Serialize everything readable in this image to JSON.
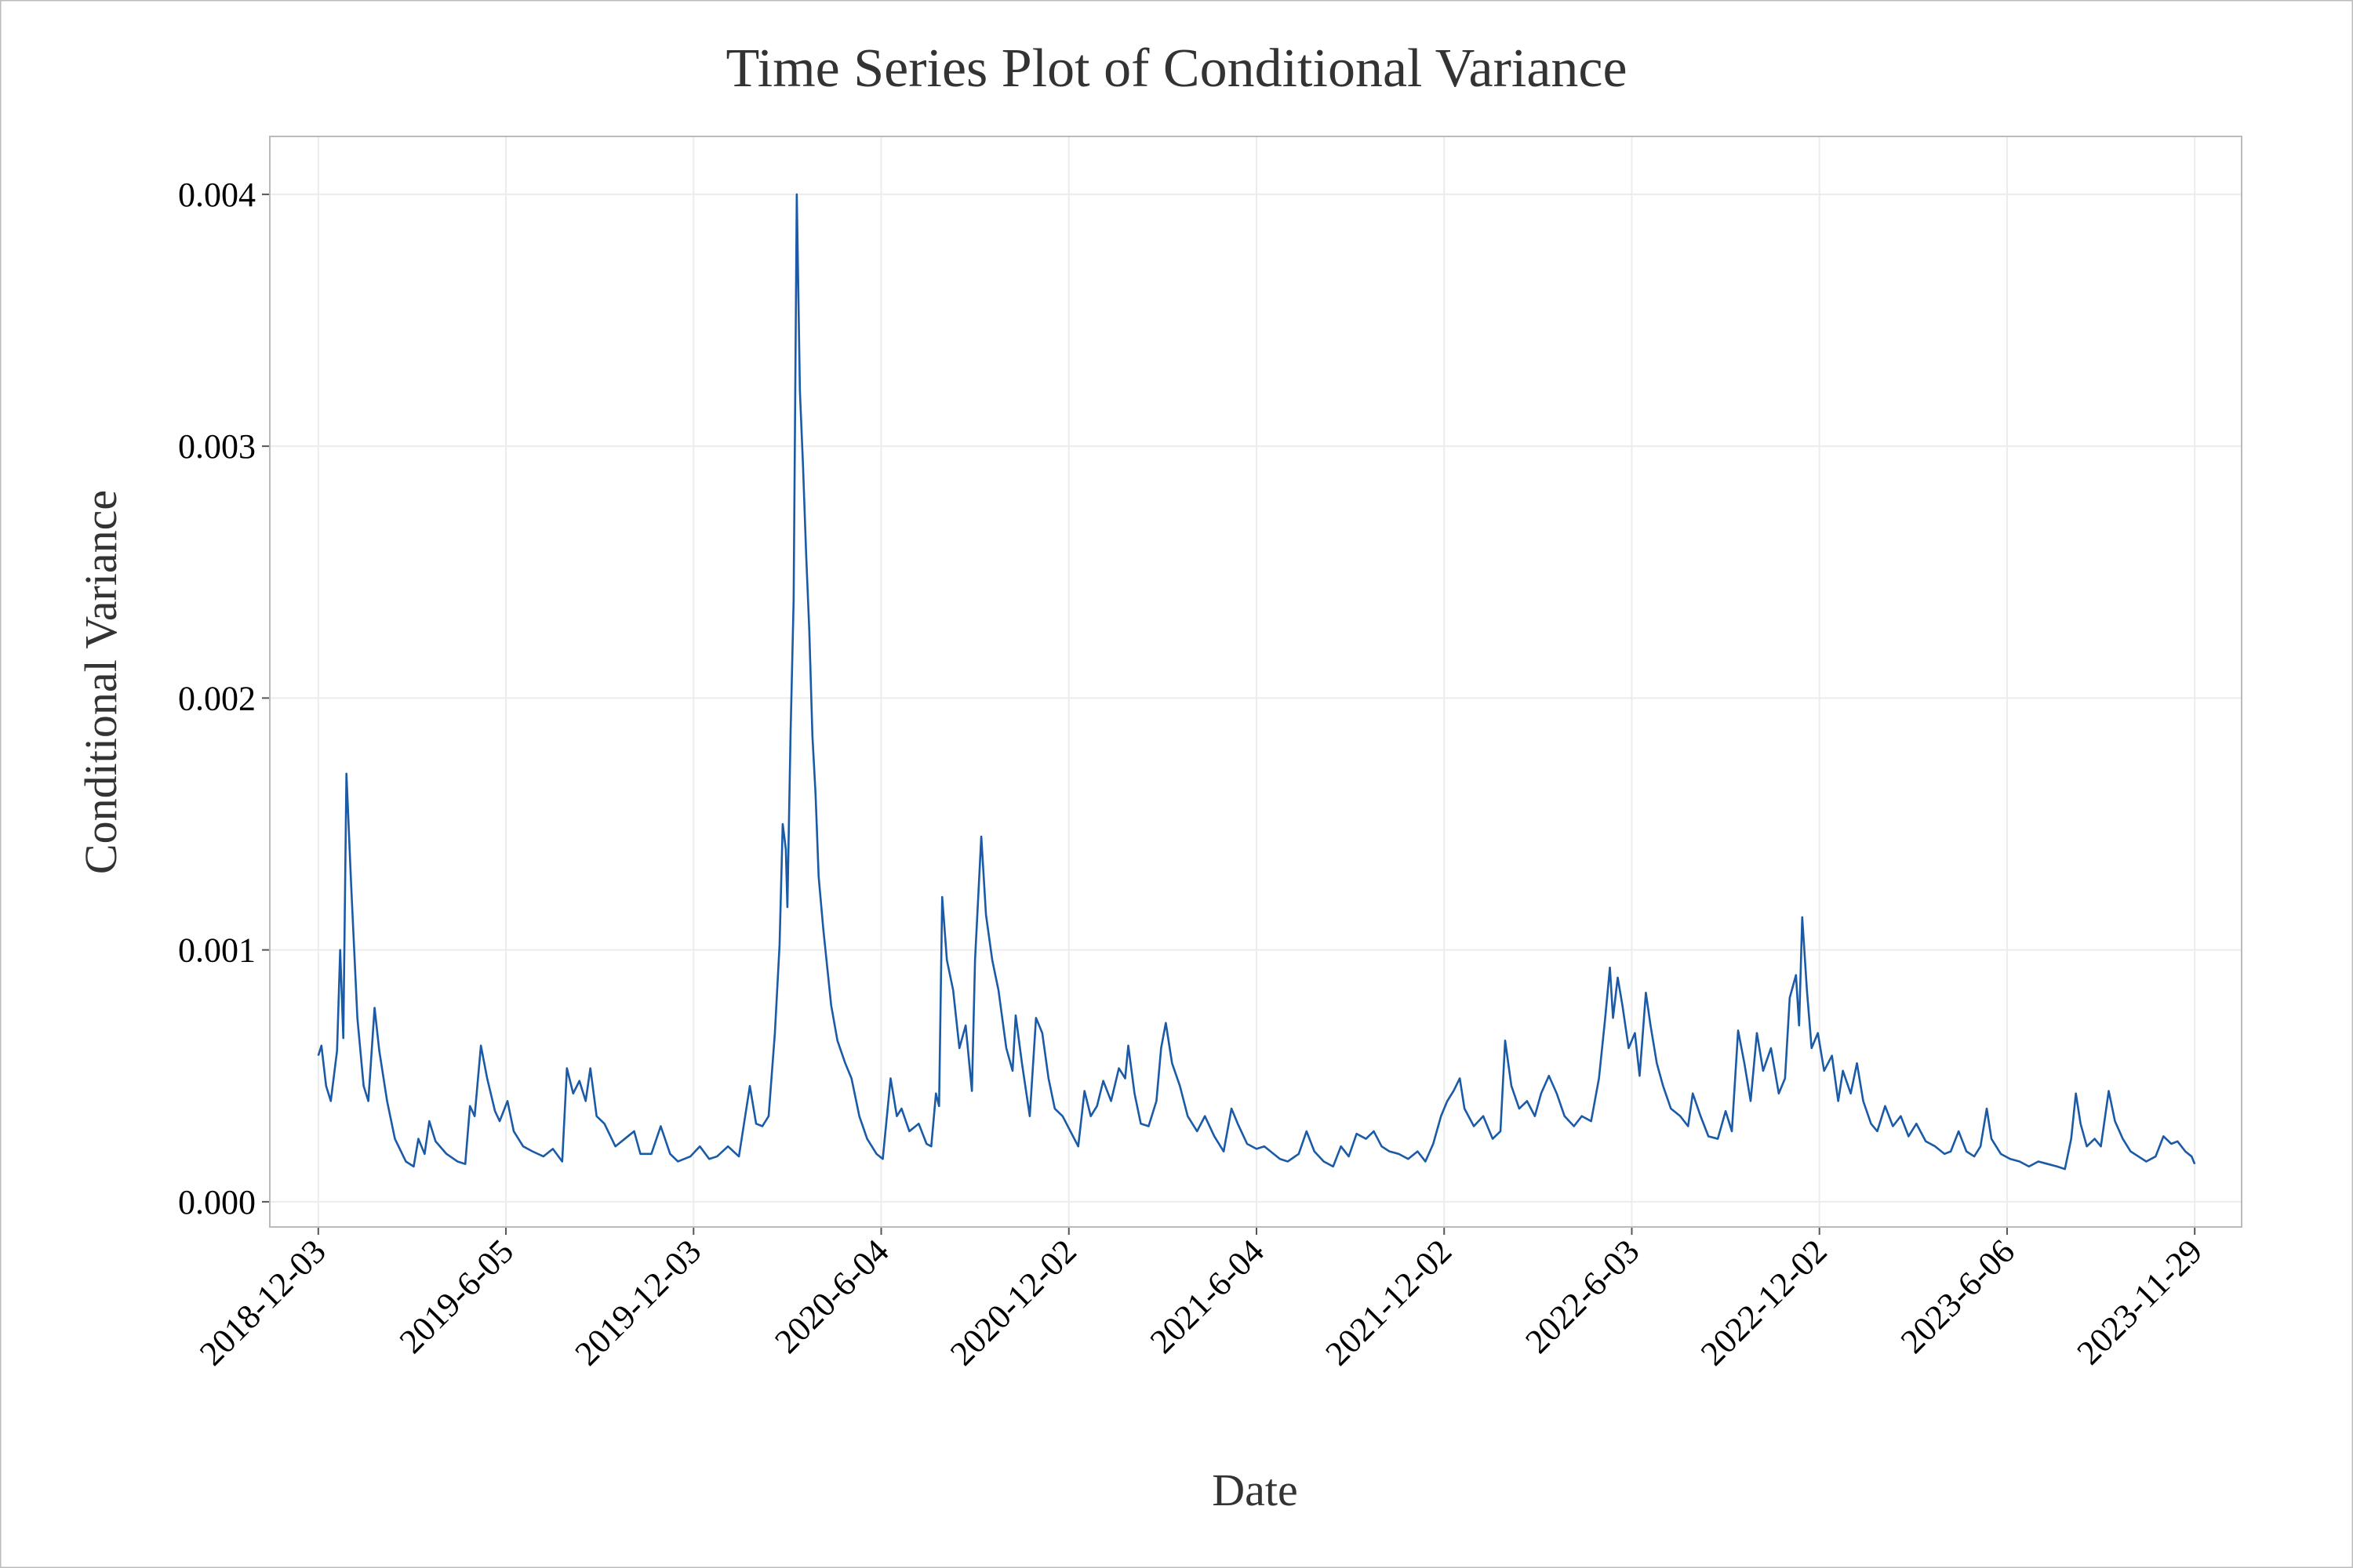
{
  "chart_data": {
    "type": "line",
    "title": "Time Series Plot of Conditional Variance",
    "xlabel": "Date",
    "ylabel": "Conditional Variance",
    "color": "#1a5aa6",
    "grid": true,
    "xlim": [
      -31,
      1230
    ],
    "xticks": [
      {
        "value": 0,
        "label": "2018-12-03"
      },
      {
        "value": 120,
        "label": "2019-6-05"
      },
      {
        "value": 240,
        "label": "2019-12-03"
      },
      {
        "value": 360,
        "label": "2020-6-04"
      },
      {
        "value": 480,
        "label": "2020-12-02"
      },
      {
        "value": 600,
        "label": "2021-6-04"
      },
      {
        "value": 720,
        "label": "2021-12-02"
      },
      {
        "value": 840,
        "label": "2022-6-03"
      },
      {
        "value": 960,
        "label": "2022-12-02"
      },
      {
        "value": 1080,
        "label": "2023-6-06"
      },
      {
        "value": 1200,
        "label": "2023-11-29"
      }
    ],
    "ylim": [
      -0.0001,
      0.00423
    ],
    "yticks": [
      {
        "value": 0,
        "label": "0.000"
      },
      0.001,
      0.002,
      0.003,
      0.004
    ],
    "x": [
      0,
      2,
      5,
      8,
      12,
      14,
      16,
      18,
      21,
      25,
      29,
      32,
      36,
      39,
      44,
      49,
      56,
      61,
      64,
      68,
      71,
      75,
      82,
      89,
      94,
      97,
      100,
      104,
      108,
      113,
      116,
      121,
      125,
      131,
      137,
      144,
      150,
      156,
      159,
      163,
      167,
      171,
      174,
      178,
      183,
      190,
      196,
      202,
      206,
      213,
      219,
      225,
      230,
      238,
      244,
      250,
      255,
      262,
      269,
      276,
      280,
      284,
      288,
      292,
      295,
      297,
      299,
      300,
      302,
      304,
      306,
      308,
      310,
      312,
      314,
      316,
      318,
      320,
      323,
      325,
      328,
      332,
      337,
      341,
      346,
      351,
      357,
      361,
      366,
      370,
      373,
      378,
      384,
      389,
      392,
      395,
      397,
      399,
      402,
      406,
      410,
      414,
      418,
      420,
      424,
      427,
      431,
      435,
      440,
      444,
      446,
      450,
      455,
      459,
      463,
      467,
      471,
      476,
      481,
      486,
      490,
      494,
      498,
      502,
      507,
      512,
      516,
      518,
      522,
      526,
      531,
      536,
      539,
      542,
      546,
      551,
      556,
      562,
      567,
      573,
      579,
      584,
      588,
      594,
      600,
      605,
      611,
      615,
      620,
      627,
      632,
      637,
      643,
      649,
      654,
      659,
      664,
      670,
      675,
      680,
      685,
      691,
      697,
      703,
      708,
      713,
      718,
      722,
      726,
      730,
      733,
      739,
      745,
      751,
      756,
      759,
      763,
      768,
      773,
      778,
      782,
      787,
      792,
      797,
      803,
      808,
      814,
      819,
      823,
      826,
      828,
      831,
      834,
      838,
      842,
      845,
      849,
      852,
      856,
      860,
      865,
      871,
      876,
      879,
      884,
      889,
      895,
      900,
      904,
      908,
      912,
      916,
      920,
      924,
      929,
      934,
      938,
      941,
      945,
      947,
      949,
      952,
      955,
      959,
      963,
      968,
      972,
      975,
      980,
      984,
      988,
      993,
      997,
      1002,
      1007,
      1012,
      1017,
      1022,
      1028,
      1034,
      1040,
      1044,
      1049,
      1054,
      1059,
      1063,
      1067,
      1070,
      1076,
      1082,
      1088,
      1094,
      1100,
      1106,
      1112,
      1117,
      1121,
      1124,
      1127,
      1131,
      1136,
      1140,
      1145,
      1149,
      1154,
      1159,
      1164,
      1169,
      1175,
      1180,
      1185,
      1189,
      1194,
      1198,
      1200
    ],
    "values": [
      0.00058,
      0.00062,
      0.00046,
      0.0004,
      0.0006,
      0.001,
      0.00065,
      0.0017,
      0.00126,
      0.00073,
      0.00046,
      0.0004,
      0.00077,
      0.0006,
      0.0004,
      0.00025,
      0.00016,
      0.00014,
      0.00025,
      0.00019,
      0.00032,
      0.00024,
      0.00019,
      0.00016,
      0.00015,
      0.00038,
      0.00034,
      0.00062,
      0.00049,
      0.00036,
      0.00032,
      0.0004,
      0.00028,
      0.00022,
      0.0002,
      0.00018,
      0.00021,
      0.00016,
      0.00053,
      0.00043,
      0.00048,
      0.0004,
      0.00053,
      0.00034,
      0.00031,
      0.00022,
      0.00025,
      0.00028,
      0.00019,
      0.00019,
      0.0003,
      0.00019,
      0.00016,
      0.00018,
      0.00022,
      0.00017,
      0.00018,
      0.00022,
      0.00018,
      0.00046,
      0.00031,
      0.0003,
      0.00034,
      0.00067,
      0.00102,
      0.0015,
      0.0014,
      0.00117,
      0.00185,
      0.00239,
      0.004,
      0.00322,
      0.00292,
      0.00257,
      0.00227,
      0.00185,
      0.00162,
      0.00129,
      0.00108,
      0.00096,
      0.00078,
      0.00064,
      0.00055,
      0.00049,
      0.00034,
      0.00025,
      0.00019,
      0.00017,
      0.00049,
      0.00034,
      0.00037,
      0.00028,
      0.00031,
      0.00023,
      0.00022,
      0.00043,
      0.00038,
      0.00121,
      0.00096,
      0.00084,
      0.00061,
      0.0007,
      0.00044,
      0.00096,
      0.00145,
      0.00114,
      0.00096,
      0.00084,
      0.00061,
      0.00052,
      0.00074,
      0.00055,
      0.00034,
      0.00073,
      0.00067,
      0.00049,
      0.00037,
      0.00034,
      0.00028,
      0.00022,
      0.00044,
      0.00034,
      0.00038,
      0.00048,
      0.0004,
      0.00053,
      0.00049,
      0.00062,
      0.00043,
      0.00031,
      0.0003,
      0.0004,
      0.00061,
      0.00071,
      0.00055,
      0.00046,
      0.00034,
      0.00028,
      0.00034,
      0.00026,
      0.0002,
      0.00037,
      0.00031,
      0.00023,
      0.00021,
      0.00022,
      0.00019,
      0.00017,
      0.00016,
      0.00019,
      0.00028,
      0.0002,
      0.00016,
      0.00014,
      0.00022,
      0.00018,
      0.00027,
      0.00025,
      0.00028,
      0.00022,
      0.0002,
      0.00019,
      0.00017,
      0.0002,
      0.00016,
      0.00023,
      0.00034,
      0.0004,
      0.00044,
      0.00049,
      0.00037,
      0.0003,
      0.00034,
      0.00025,
      0.00028,
      0.00064,
      0.00046,
      0.00037,
      0.0004,
      0.00034,
      0.00043,
      0.0005,
      0.00043,
      0.00034,
      0.0003,
      0.00034,
      0.00032,
      0.00049,
      0.00073,
      0.00093,
      0.00073,
      0.00089,
      0.00078,
      0.00061,
      0.00067,
      0.0005,
      0.00083,
      0.0007,
      0.00055,
      0.00046,
      0.00037,
      0.00034,
      0.0003,
      0.00043,
      0.00034,
      0.00026,
      0.00025,
      0.00036,
      0.00028,
      0.00068,
      0.00055,
      0.0004,
      0.00067,
      0.00052,
      0.00061,
      0.00043,
      0.00049,
      0.00081,
      0.0009,
      0.0007,
      0.00113,
      0.00084,
      0.00061,
      0.00067,
      0.00052,
      0.00058,
      0.0004,
      0.00052,
      0.00043,
      0.00055,
      0.0004,
      0.00031,
      0.00028,
      0.00038,
      0.0003,
      0.00034,
      0.00026,
      0.00031,
      0.00024,
      0.00022,
      0.00019,
      0.0002,
      0.00028,
      0.0002,
      0.00018,
      0.00022,
      0.00037,
      0.00025,
      0.00019,
      0.00017,
      0.00016,
      0.00014,
      0.00016,
      0.00015,
      0.00014,
      0.00013,
      0.00025,
      0.00043,
      0.00031,
      0.00022,
      0.00025,
      0.00022,
      0.00044,
      0.00032,
      0.00025,
      0.0002,
      0.00018,
      0.00016,
      0.00018,
      0.00026,
      0.00023,
      0.00024,
      0.0002,
      0.00018,
      0.00015
    ]
  }
}
